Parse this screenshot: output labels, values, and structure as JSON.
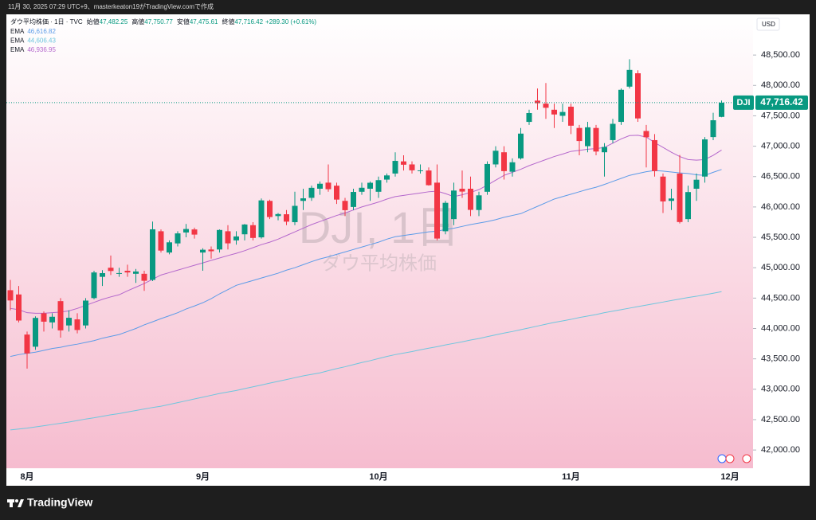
{
  "header": {
    "created": "11月 30, 2025 07:29 UTC+9、masterkeaton19がTradingView.comで作成"
  },
  "chart_data": {
    "type": "candlestick",
    "title": "ダウ平均株価 · 1日 · TVC",
    "ohlc_legend": [
      {
        "label": "始値",
        "value": "47,482.25"
      },
      {
        "label": "高値",
        "value": "47,750.77"
      },
      {
        "label": "安値",
        "value": "47,475.61"
      },
      {
        "label": "終値",
        "value": "47,716.42"
      }
    ],
    "change": "+289.30 (+0.61%)",
    "watermark": "DJI, 1日",
    "watermark_sub": "ダウ平均株価",
    "currency": "USD",
    "symbol": "DJI",
    "last_price_label": "47,716.42",
    "up_color": "#089981",
    "down_color": "#f23645",
    "categories": [
      null,
      null,
      "8月",
      null,
      null,
      null,
      null,
      null,
      null,
      null,
      null,
      null,
      null,
      null,
      null,
      null,
      null,
      null,
      null,
      null,
      null,
      null,
      null,
      "9月",
      null,
      null,
      null,
      null,
      null,
      null,
      null,
      null,
      null,
      null,
      null,
      null,
      null,
      null,
      null,
      null,
      null,
      null,
      null,
      null,
      "10月",
      null,
      null,
      null,
      null,
      null,
      null,
      null,
      null,
      null,
      null,
      null,
      null,
      null,
      null,
      null,
      null,
      null,
      null,
      null,
      null,
      null,
      null,
      "11月",
      null,
      null,
      null,
      null,
      null,
      null,
      null,
      null,
      null,
      null,
      null,
      null,
      null,
      null,
      null,
      null,
      null,
      null,
      "12月"
    ],
    "open": [
      44630,
      44560,
      43900,
      43700,
      44250,
      44100,
      44450,
      44050,
      44150,
      44050,
      44500,
      44850,
      45000,
      44900,
      44950,
      44900,
      44900,
      44800,
      45600,
      45250,
      45400,
      45580,
      45630,
      45250,
      45300,
      45300,
      45600,
      45450,
      45550,
      45700,
      45500,
      46100,
      45850,
      45880,
      45750,
      46100,
      46150,
      46300,
      46400,
      46350,
      46100,
      46000,
      46250,
      46300,
      46250,
      46450,
      46550,
      46750,
      46700,
      46590,
      46600,
      46400,
      45600,
      45800,
      46300,
      46300,
      45950,
      46250,
      46700,
      46900,
      46580,
      46800,
      47400,
      47750,
      47700,
      47600,
      47500,
      47650,
      47300,
      47000,
      47300,
      46900,
      47100,
      47400,
      47980,
      48200,
      47250,
      47100,
      46500,
      46100,
      46550,
      45800,
      46300,
      46500,
      47150,
      47482.25,
      null
    ],
    "high": [
      44800,
      44700,
      43950,
      44200,
      44280,
      44250,
      44500,
      44300,
      44250,
      44500,
      44950,
      44960,
      45200,
      45000,
      45050,
      44980,
      44950,
      45760,
      45630,
      45450,
      45600,
      45720,
      45660,
      45320,
      45350,
      45630,
      45700,
      45600,
      45720,
      45750,
      46140,
      46120,
      45900,
      45950,
      46250,
      46300,
      46350,
      46420,
      46700,
      46400,
      46150,
      46300,
      46400,
      46420,
      46500,
      46550,
      46900,
      46850,
      46750,
      46700,
      46650,
      46700,
      46100,
      46400,
      46600,
      46500,
      46250,
      46750,
      47000,
      47000,
      46800,
      47300,
      47600,
      47950,
      48040,
      47700,
      47700,
      47700,
      47350,
      47400,
      47350,
      47050,
      47450,
      47950,
      48431,
      48250,
      47350,
      47200,
      46550,
      46300,
      46856,
      46350,
      46550,
      47150,
      47550,
      47750.77,
      null
    ],
    "low": [
      44300,
      44100,
      43340,
      43650,
      43950,
      44000,
      43850,
      43950,
      43920,
      44000,
      44480,
      44700,
      44880,
      44850,
      44850,
      44750,
      44620,
      44780,
      45250,
      45220,
      45350,
      45500,
      45480,
      44950,
      45150,
      45250,
      45300,
      45380,
      45450,
      45450,
      45480,
      45800,
      45780,
      45700,
      45700,
      45950,
      46100,
      46200,
      46250,
      46050,
      45850,
      45950,
      46200,
      46100,
      46150,
      46400,
      46500,
      46600,
      46550,
      46550,
      46350,
      45450,
      45550,
      45700,
      46150,
      45850,
      45850,
      46200,
      46650,
      46450,
      46500,
      46780,
      47350,
      47600,
      47450,
      47300,
      47400,
      47200,
      46850,
      46900,
      46850,
      46500,
      47050,
      47350,
      47950,
      47400,
      46650,
      46500,
      45900,
      45950,
      45729,
      45750,
      46100,
      46400,
      47100,
      47475.61,
      null
    ],
    "close": [
      44461,
      44131,
      43589,
      44174,
      44112,
      44193,
      43969,
      44176,
      43975,
      44459,
      44922,
      44911,
      44946,
      44912,
      44922,
      44938,
      44785,
      45632,
      45282,
      45418,
      45565,
      45637,
      45545,
      45296,
      45271,
      45621,
      45401,
      45515,
      45711,
      45490,
      46108,
      45834,
      45883,
      45758,
      46018,
      46142,
      46315,
      46382,
      46292,
      46121,
      45947,
      46247,
      46316,
      46398,
      46441,
      46519,
      46758,
      46695,
      46603,
      46602,
      46358,
      45480,
      46068,
      46270,
      46253,
      45952,
      46191,
      46707,
      46925,
      46590,
      46735,
      47207,
      47545,
      47707,
      47632,
      47522,
      47563,
      47337,
      47085,
      47311,
      46912,
      46987,
      47368,
      47928,
      48255,
      47457,
      47147,
      46590,
      46091,
      46139,
      45752,
      46245,
      46448,
      47112,
      47427,
      47716.42,
      null
    ],
    "series": [
      {
        "name": "EMA",
        "color": "#5b9be8",
        "value_label": "46,616.82",
        "values": [
          43540,
          43570,
          43590,
          43610,
          43640,
          43670,
          43690,
          43720,
          43742,
          43770,
          43800,
          43840,
          43870,
          43900,
          43950,
          44000,
          44060,
          44110,
          44162,
          44210,
          44260,
          44320,
          44370,
          44424,
          44490,
          44570,
          44640,
          44710,
          44750,
          44790,
          44830,
          44870,
          44910,
          44960,
          45000,
          45050,
          45100,
          45145,
          45180,
          45220,
          45260,
          45300,
          45340,
          45380,
          45420,
          45470,
          45510,
          45530,
          45550,
          45570,
          45590,
          45600,
          45630,
          45650,
          45680,
          45710,
          45735,
          45760,
          45790,
          45830,
          45860,
          45890,
          45950,
          46010,
          46070,
          46130,
          46170,
          46210,
          46250,
          46290,
          46325,
          46370,
          46420,
          46470,
          46520,
          46550,
          46580,
          46600,
          46590,
          46575,
          46560,
          46550,
          46530,
          46520,
          46570,
          46616.82,
          null
        ]
      },
      {
        "name": "EMA",
        "color": "#6ec6de",
        "value_label": "44,606.43",
        "values": [
          42330,
          42345,
          42360,
          42380,
          42400,
          42420,
          42440,
          42460,
          42485,
          42510,
          42530,
          42555,
          42580,
          42600,
          42625,
          42650,
          42675,
          42700,
          42720,
          42750,
          42780,
          42810,
          42840,
          42870,
          42900,
          42930,
          42955,
          42980,
          43010,
          43040,
          43070,
          43100,
          43130,
          43160,
          43190,
          43220,
          43245,
          43270,
          43305,
          43340,
          43370,
          43405,
          43440,
          43470,
          43505,
          43540,
          43570,
          43595,
          43620,
          43650,
          43675,
          43700,
          43730,
          43755,
          43780,
          43810,
          43835,
          43865,
          43895,
          43925,
          43950,
          43980,
          44010,
          44040,
          44070,
          44100,
          44125,
          44150,
          44180,
          44205,
          44230,
          44260,
          44285,
          44310,
          44335,
          44360,
          44385,
          44410,
          44435,
          44460,
          44485,
          44510,
          44530,
          44555,
          44580,
          44606.43,
          null
        ]
      },
      {
        "name": "EMA",
        "color": "#b467cc",
        "value_label": "46,936.95",
        "values": [
          44330,
          44310,
          44260,
          44250,
          44250,
          44260,
          44270,
          44290,
          44330,
          44380,
          44430,
          44480,
          44520,
          44555,
          44620,
          44680,
          44740,
          44810,
          44880,
          44920,
          44960,
          45000,
          45040,
          45080,
          45120,
          45160,
          45200,
          45237,
          45280,
          45330,
          45380,
          45420,
          45470,
          45530,
          45590,
          45650,
          45710,
          45760,
          45810,
          45860,
          45900,
          45950,
          46000,
          46040,
          46080,
          46130,
          46170,
          46190,
          46210,
          46230,
          46250,
          46260,
          46220,
          46170,
          46200,
          46240,
          46285,
          46360,
          46440,
          46520,
          46570,
          46620,
          46680,
          46730,
          46780,
          46830,
          46870,
          46915,
          46930,
          46950,
          46960,
          46980,
          47050,
          47120,
          47175,
          47180,
          47150,
          47060,
          46980,
          46900,
          46830,
          46780,
          46770,
          46780,
          46850,
          46936.95,
          null
        ]
      }
    ],
    "ylim": [
      41700,
      49170
    ],
    "yticks": [
      {
        "value": 42000,
        "label": "42,000.00"
      },
      {
        "value": 42500,
        "label": "42,500.00"
      },
      {
        "value": 43000,
        "label": "43,000.00"
      },
      {
        "value": 43500,
        "label": "43,500.00"
      },
      {
        "value": 44000,
        "label": "44,000.00"
      },
      {
        "value": 44500,
        "label": "44,500.00"
      },
      {
        "value": 45000,
        "label": "45,000.00"
      },
      {
        "value": 45500,
        "label": "45,500.00"
      },
      {
        "value": 46000,
        "label": "46,000.00"
      },
      {
        "value": 46500,
        "label": "46,500.00"
      },
      {
        "value": 47000,
        "label": "47,000.00"
      },
      {
        "value": 47500,
        "label": "47,500.00"
      },
      {
        "value": 48000,
        "label": "48,000.00"
      },
      {
        "value": 48500,
        "label": "48,500.00"
      }
    ],
    "price_line": true
  },
  "footer": {
    "brand": "TradingView"
  }
}
